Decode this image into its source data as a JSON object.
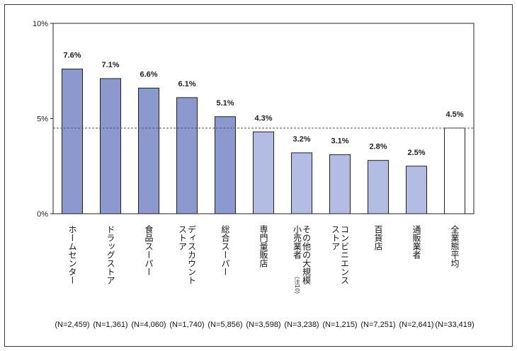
{
  "chart_data": {
    "type": "bar",
    "title": "",
    "xlabel": "",
    "ylabel": "",
    "ylim": [
      0,
      10
    ],
    "y_ticks": [
      "0%",
      "5%",
      "10%"
    ],
    "grid": false,
    "reference_line": {
      "value": 4.5,
      "style": "dashed"
    },
    "categories": [
      "ホームセンター",
      "ドラッグストア",
      "食品スーパー",
      "ディスカウントストア",
      "総合スーパー",
      "専門量販店",
      "その他の大規模小売業者",
      "コンビニエンスストア",
      "百貨店",
      "通販業者",
      "全業態平均"
    ],
    "category_lines": [
      [
        "ホームセンター"
      ],
      [
        "ドラッグストア"
      ],
      [
        "食品スーパー"
      ],
      [
        "ディスカウント",
        "ストア"
      ],
      [
        "総合スーパー"
      ],
      [
        "専門量販店"
      ],
      [
        "その他の大規模",
        "小売業者"
      ],
      [
        "コンビニエンス",
        "ストア"
      ],
      [
        "百貨店"
      ],
      [
        "通販業者"
      ],
      [
        "全業態平均"
      ]
    ],
    "category_note": {
      "index": 6,
      "text": "（注10）"
    },
    "values": [
      7.6,
      7.1,
      6.6,
      6.1,
      5.1,
      4.3,
      3.2,
      3.1,
      2.8,
      2.5,
      4.5
    ],
    "data_labels": [
      "7.6%",
      "7.1%",
      "6.6%",
      "6.1%",
      "5.1%",
      "4.3%",
      "3.2%",
      "3.1%",
      "2.8%",
      "2.5%",
      "4.5%"
    ],
    "sample_sizes": [
      "(N=2,459)",
      "(N=1,361)",
      "(N=4,060)",
      "(N=1,740)",
      "(N=5,856)",
      "(N=3,598)",
      "(N=3,238)",
      "(N=1,215)",
      "(N=7,251)",
      "(N=2,641)",
      "(N=33,419)"
    ],
    "colors": {
      "dark": "#8b99cf",
      "light": "#b3bce2",
      "average": "#ffffff",
      "border": "#222222",
      "refline": "#555555"
    },
    "bar_color_groups": [
      "dark",
      "dark",
      "dark",
      "dark",
      "dark",
      "light",
      "light",
      "light",
      "light",
      "light",
      "average"
    ]
  }
}
